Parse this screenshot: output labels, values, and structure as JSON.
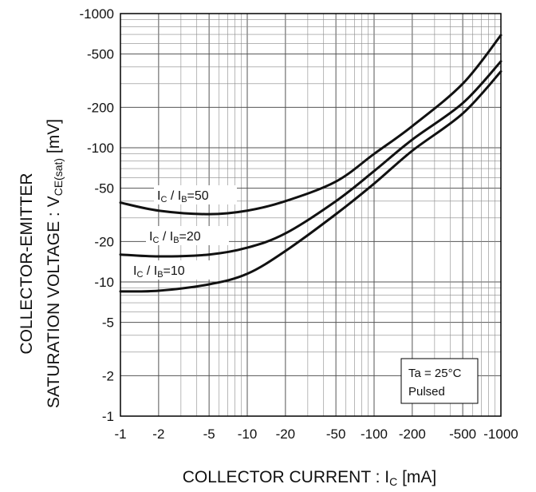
{
  "chart_data": {
    "type": "line",
    "title": "",
    "x_scale": "log",
    "y_scale": "log",
    "xlim": [
      -1,
      -1000
    ],
    "ylim": [
      -1,
      -1000
    ],
    "x_ticks": [
      -1,
      -2,
      -5,
      -10,
      -20,
      -50,
      -100,
      -200,
      -500,
      -1000
    ],
    "x_tick_labels": [
      "-1",
      "-2",
      "-5",
      "-10",
      "-20",
      "-50",
      "-100",
      "-200",
      "-500",
      "-1000"
    ],
    "y_ticks": [
      -1,
      -2,
      -5,
      -10,
      -20,
      -50,
      -100,
      -200,
      -500,
      -1000
    ],
    "y_tick_labels": [
      "-1",
      "-2",
      "-5",
      "-10",
      "-20",
      "-50",
      "-100",
      "-200",
      "-500",
      "-1000"
    ],
    "xlabel": {
      "main": "COLLECTOR CURRENT : I",
      "sub": "C",
      "unit": " [mA]"
    },
    "ylabel": {
      "line1": "COLLECTOR-EMITTER",
      "line2_main": "SATURATION VOLTAGE : V",
      "line2_sub": "CE(sat)",
      "line2_unit": " [mV]"
    },
    "grid": true,
    "series": [
      {
        "name": "IC / IB=50",
        "label_parts": [
          "I",
          "C",
          " / I",
          "B",
          "=50"
        ],
        "x": [
          -1,
          -2,
          -5,
          -10,
          -20,
          -50,
          -100,
          -200,
          -500,
          -1000
        ],
        "y": [
          -39,
          -34,
          -32,
          -34,
          -40,
          -56,
          -90,
          -145,
          -300,
          -690
        ]
      },
      {
        "name": "IC / IB=20",
        "label_parts": [
          "I",
          "C",
          " / I",
          "B",
          "=20"
        ],
        "x": [
          -1,
          -2,
          -5,
          -10,
          -20,
          -50,
          -100,
          -200,
          -500,
          -1000
        ],
        "y": [
          -16,
          -15.5,
          -16,
          -18,
          -23,
          -40,
          -67,
          -115,
          -215,
          -440
        ]
      },
      {
        "name": "IC / IB=10",
        "label_parts": [
          "I",
          "C",
          " / I",
          "B",
          "=10"
        ],
        "x": [
          -1,
          -2,
          -5,
          -10,
          -20,
          -50,
          -100,
          -200,
          -500,
          -1000
        ],
        "y": [
          -8.5,
          -8.6,
          -9.6,
          -11.5,
          -17,
          -32,
          -54,
          -95,
          -180,
          -370
        ]
      }
    ],
    "annotation": {
      "line1": "Ta = 25°C",
      "line2": "Pulsed",
      "placement": "bottom-right"
    }
  }
}
